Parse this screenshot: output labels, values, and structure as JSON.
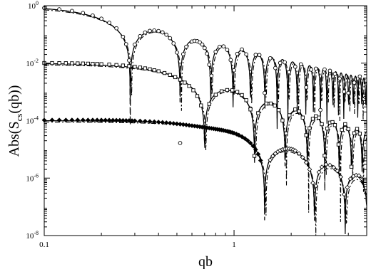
{
  "chart_data": {
    "type": "line",
    "title": "",
    "xlabel": "qb",
    "ylabel": "Abs(S_cs(qb))",
    "xscale": "log",
    "yscale": "log",
    "xlim": [
      0.1,
      5.0
    ],
    "ylim": [
      1e-08,
      1.0
    ],
    "x_ticks": [
      {
        "value": 0.1,
        "label": "0.1"
      },
      {
        "value": 1,
        "label": "1"
      }
    ],
    "y_ticks": [
      {
        "value": 1,
        "base": "10",
        "exp": "0"
      },
      {
        "value": 0.01,
        "base": "10",
        "exp": "-2"
      },
      {
        "value": 0.0001,
        "base": "10",
        "exp": "-4"
      },
      {
        "value": 1e-06,
        "base": "10",
        "exp": "-6"
      },
      {
        "value": 1e-08,
        "base": "10",
        "exp": "-8"
      }
    ],
    "grid": false,
    "legend": "none",
    "series": [
      {
        "amplitude": 1.0,
        "first_zero": 0.284,
        "decay_exponent": 1.0,
        "marker": "circle",
        "marker_x": [
          0.1,
          0.12,
          0.14,
          0.16,
          0.18,
          0.2,
          0.22,
          0.24,
          0.26,
          0.27,
          0.28,
          0.3,
          0.32,
          0.34,
          0.36,
          0.38,
          0.4,
          0.42,
          0.44,
          0.46,
          0.48,
          0.5,
          0.52,
          0.54,
          0.56,
          0.6,
          0.62,
          0.64,
          0.66,
          0.68,
          0.7,
          0.72,
          0.74,
          0.76,
          0.8,
          0.84,
          0.88,
          0.92,
          0.96,
          1.0,
          1.04,
          1.1,
          1.16,
          1.22,
          1.3,
          1.36,
          1.45,
          1.55,
          1.65,
          1.75,
          1.85,
          1.95,
          2.1,
          2.25,
          2.4,
          2.55,
          2.7,
          2.85,
          3.0,
          3.2,
          3.4,
          3.6,
          3.8,
          4.0,
          4.3,
          4.6
        ],
        "ref_x": [
          0.1,
          0.12,
          0.14,
          0.16,
          0.18,
          0.2,
          0.22,
          0.24,
          0.26,
          0.27,
          0.28,
          0.29,
          0.3,
          0.32,
          0.34,
          0.36,
          0.38,
          0.4,
          0.42,
          0.44,
          0.46,
          0.48,
          0.5,
          0.52,
          0.54,
          0.56,
          0.57,
          0.58,
          0.6,
          0.62,
          0.64,
          0.66,
          0.68,
          0.7,
          0.72,
          0.74,
          0.76,
          0.78,
          0.8,
          0.84,
          0.86,
          0.88,
          0.92,
          0.96,
          1.0,
          1.04,
          1.08,
          1.1,
          1.12,
          1.16,
          1.22,
          1.28,
          1.3,
          1.36,
          1.4,
          1.45,
          1.55,
          1.65,
          1.75,
          1.85,
          1.95,
          2.1,
          2.25,
          2.4,
          2.55,
          2.7,
          2.85,
          3.0,
          3.2,
          3.4,
          3.6,
          3.8,
          4.0,
          4.3,
          4.6,
          4.9
        ]
      },
      {
        "amplitude": 0.01,
        "first_zero": 0.7,
        "decay_exponent": 1.5,
        "marker": "square",
        "marker_x": [
          0.1,
          0.11,
          0.12,
          0.13,
          0.14,
          0.15,
          0.16,
          0.17,
          0.18,
          0.19,
          0.2,
          0.22,
          0.24,
          0.26,
          0.28,
          0.3,
          0.32,
          0.34,
          0.36,
          0.38,
          0.4,
          0.43,
          0.46,
          0.49,
          0.52,
          0.55,
          0.58,
          0.61,
          0.64,
          0.67,
          0.74,
          0.8,
          0.86,
          0.92,
          0.98,
          1.04,
          1.1,
          1.16,
          1.22,
          1.28,
          1.34,
          1.48,
          1.56,
          1.64,
          1.72,
          1.8,
          1.88,
          1.96,
          2.1,
          2.2,
          2.3,
          2.4,
          2.5,
          2.6,
          2.7,
          2.8,
          2.9,
          3.0,
          3.1,
          3.2,
          3.3,
          3.4,
          3.55,
          3.7,
          3.85,
          4.0,
          4.15,
          4.3,
          4.45,
          4.6
        ],
        "ref_x": [
          0.1,
          0.12,
          0.15,
          0.18,
          0.22,
          0.26,
          0.3,
          0.35,
          0.4,
          0.45,
          0.5,
          0.55,
          0.6,
          0.64,
          0.67,
          0.69,
          0.7,
          0.71,
          0.73,
          0.76,
          0.8,
          0.86,
          0.92,
          0.98,
          1.04,
          1.1,
          1.16,
          1.22,
          1.28,
          1.34,
          1.38,
          1.4,
          1.42,
          1.46,
          1.52,
          1.6,
          1.68,
          1.76,
          1.84,
          1.92,
          2.0,
          2.06,
          2.1,
          2.14,
          2.2,
          2.3,
          2.4,
          2.5,
          2.6,
          2.7,
          2.8,
          2.9,
          3.0,
          3.1,
          3.2,
          3.3,
          3.4,
          3.55,
          3.7,
          3.85,
          4.0,
          4.15,
          4.3,
          4.45,
          4.6,
          4.75,
          4.9
        ]
      },
      {
        "amplitude": 0.0001,
        "first_zero": 1.45,
        "decay_exponent": 2.0,
        "marker": "diamond",
        "marker_x": [
          0.1,
          0.11,
          0.12,
          0.13,
          0.14,
          0.15,
          0.16,
          0.17,
          0.18,
          0.19,
          0.2,
          0.21,
          0.22,
          0.23,
          0.24,
          0.25,
          0.26,
          0.27,
          0.28,
          0.29,
          0.3,
          0.32,
          0.34,
          0.36,
          0.38,
          0.4,
          0.42,
          0.44,
          0.46,
          0.48,
          0.5,
          0.52,
          0.54,
          0.56,
          0.58,
          0.6,
          0.62,
          0.64,
          0.66,
          0.68,
          0.7,
          0.72,
          0.74,
          0.76,
          0.78,
          0.8,
          0.82,
          0.84,
          0.86,
          0.88,
          0.9,
          0.92,
          0.94,
          0.96,
          0.98,
          1.0,
          1.03,
          1.06,
          1.1,
          1.14,
          1.18,
          1.22,
          1.26,
          1.3,
          1.34,
          1.38,
          1.55,
          1.6,
          1.65,
          1.7,
          1.75,
          1.8,
          1.85,
          1.9,
          1.95,
          2.0,
          2.05,
          2.1,
          2.2,
          2.3,
          2.4,
          2.5,
          2.6,
          2.7,
          2.8,
          2.9,
          3.05,
          3.2,
          3.35,
          3.5,
          3.65,
          3.8,
          3.95,
          4.1,
          4.25,
          4.4,
          4.55,
          4.7
        ],
        "ref_x": [
          0.1,
          0.12,
          0.15,
          0.18,
          0.22,
          0.26,
          0.3,
          0.35,
          0.4,
          0.45,
          0.5,
          0.55,
          0.6,
          0.65,
          0.7,
          0.75,
          0.8,
          0.85,
          0.9,
          0.95,
          1.0,
          1.05,
          1.1,
          1.15,
          1.2,
          1.25,
          1.3,
          1.34,
          1.38,
          1.41,
          1.43,
          1.44,
          1.45,
          1.46,
          1.47,
          1.49,
          1.52,
          1.56,
          1.62,
          1.7,
          1.8,
          1.9,
          2.0,
          2.1,
          2.2,
          2.3,
          2.4,
          2.5,
          2.6,
          2.7,
          2.8,
          2.9,
          3.0,
          3.1,
          3.2,
          3.3,
          3.4,
          3.55,
          3.7,
          3.85,
          4.0,
          4.15,
          4.3,
          4.45,
          4.6,
          4.75,
          4.9
        ]
      }
    ]
  }
}
